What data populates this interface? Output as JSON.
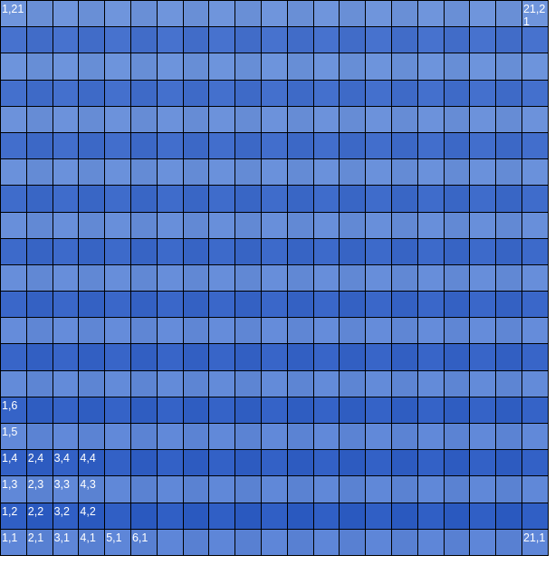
{
  "grid": {
    "columns": 21,
    "rows": 21,
    "colors": {
      "light": "#6f95dc",
      "dark": "#4a75cf"
    },
    "cell_labels": {
      "1,1": "1,1",
      "2,1": "2,1",
      "3,1": "3,1",
      "4,1": "4,1",
      "5,1": "5,1",
      "6,1": "6,1",
      "21,1": "21,1",
      "1,2": "1,2",
      "2,2": "2,2",
      "3,2": "3,2",
      "4,2": "4,2",
      "1,3": "1,3",
      "2,3": "2,3",
      "3,3": "3,3",
      "4,3": "4,3",
      "1,4": "1,4",
      "2,4": "2,4",
      "3,4": "3,4",
      "4,4": "4,4",
      "1,5": "1,5",
      "1,6": "1,6",
      "1,21": "1,21",
      "21,21": "21,21"
    }
  }
}
